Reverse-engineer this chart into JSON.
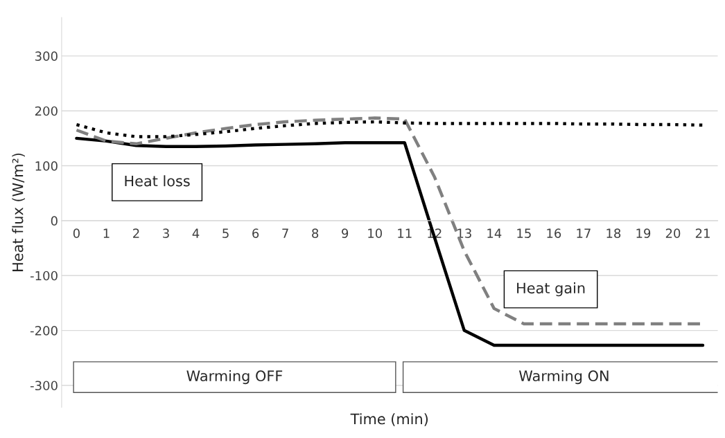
{
  "chart_data": {
    "type": "line",
    "xlabel": "Time (min)",
    "ylabel": "Heat flux (W/m²)",
    "categories": [
      "0",
      "1",
      "2",
      "3",
      "4",
      "5",
      "6",
      "7",
      "8",
      "9",
      "10",
      "11",
      "12",
      "13",
      "14",
      "15",
      "16",
      "17",
      "18",
      "19",
      "20",
      "21"
    ],
    "series": [
      {
        "color": "#000000",
        "line_style": "solid",
        "values": [
          150,
          145,
          137,
          135,
          135,
          136,
          138,
          139,
          140,
          142,
          142,
          142,
          -30,
          -200,
          -227,
          -227,
          -227,
          -227,
          -227,
          -227,
          -227,
          -227
        ]
      },
      {
        "color": "#808080",
        "line_style": "dashed",
        "values": [
          165,
          145,
          140,
          150,
          160,
          168,
          175,
          180,
          183,
          185,
          187,
          185,
          80,
          -55,
          -160,
          -188,
          -188,
          -188,
          -188,
          -188,
          -188,
          -188
        ]
      },
      {
        "color": "#000000",
        "line_style": "dotted",
        "values": [
          175,
          160,
          153,
          153,
          157,
          162,
          168,
          173,
          177,
          179,
          180,
          178,
          177,
          177,
          177,
          177,
          177,
          176,
          176,
          175,
          175,
          174
        ]
      }
    ],
    "ylim": [
      -340,
      370
    ],
    "yticks": [
      -300,
      -200,
      -100,
      0,
      100,
      200,
      300
    ],
    "grid": "y",
    "annotations": [
      "Heat loss",
      "Heat gain",
      "Warming OFF",
      "Warming ON"
    ]
  }
}
